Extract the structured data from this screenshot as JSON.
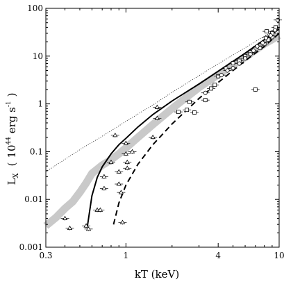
{
  "chart_data": {
    "type": "scatter",
    "title": "",
    "xlabel": "kT (keV)",
    "ylabel_main": "L",
    "ylabel_sub": "X",
    "ylabel_units_base": "10",
    "ylabel_units_exp": "44",
    "ylabel_units_tail": " erg s",
    "ylabel_units_tail_exp": "-1",
    "x_scale": "log",
    "y_scale": "log",
    "xlim": [
      0.3,
      10
    ],
    "ylim": [
      0.001,
      100
    ],
    "x_ticks": [
      {
        "value": 0.3,
        "label": "0.3"
      },
      {
        "value": 1,
        "label": "1"
      },
      {
        "value": 4,
        "label": "4"
      },
      {
        "value": 10,
        "label": "10"
      }
    ],
    "y_ticks": [
      {
        "value": 0.001,
        "label": "0.001"
      },
      {
        "value": 0.01,
        "label": "0.01"
      },
      {
        "value": 0.1,
        "label": "0.1"
      },
      {
        "value": 1,
        "label": "1"
      },
      {
        "value": 10,
        "label": "10"
      },
      {
        "value": 100,
        "label": "100"
      }
    ],
    "series": [
      {
        "style": "dotted-line",
        "points": [
          [
            0.3,
            0.038
          ],
          [
            0.5,
            0.11
          ],
          [
            0.7,
            0.21
          ],
          [
            1.0,
            0.43
          ],
          [
            1.5,
            0.95
          ],
          [
            2.0,
            1.75
          ],
          [
            3.0,
            3.9
          ],
          [
            4.0,
            6.9
          ],
          [
            6.0,
            15
          ],
          [
            8.0,
            26
          ],
          [
            10,
            40
          ]
        ]
      },
      {
        "style": "solid-curve",
        "points": [
          [
            0.56,
            0.0027
          ],
          [
            0.6,
            0.012
          ],
          [
            0.65,
            0.029
          ],
          [
            0.7,
            0.048
          ],
          [
            0.8,
            0.09
          ],
          [
            0.9,
            0.14
          ],
          [
            1.0,
            0.19
          ],
          [
            1.2,
            0.33
          ],
          [
            1.5,
            0.6
          ],
          [
            2.0,
            1.15
          ],
          [
            3.0,
            2.6
          ],
          [
            4.0,
            4.8
          ],
          [
            6.0,
            11.5
          ],
          [
            8.0,
            22
          ],
          [
            10,
            37
          ]
        ]
      },
      {
        "style": "dashed-curve",
        "points": [
          [
            0.83,
            0.003
          ],
          [
            0.9,
            0.0085
          ],
          [
            1.0,
            0.02
          ],
          [
            1.2,
            0.055
          ],
          [
            1.5,
            0.14
          ],
          [
            2.0,
            0.38
          ],
          [
            3.0,
            1.3
          ],
          [
            4.0,
            2.8
          ],
          [
            6.0,
            8.0
          ],
          [
            8.0,
            16
          ],
          [
            10,
            30
          ]
        ]
      },
      {
        "style": "gray-band",
        "points": [
          [
            0.3,
            0.0028
          ],
          [
            0.35,
            0.0042
          ],
          [
            0.4,
            0.0065
          ],
          [
            0.45,
            0.009
          ],
          [
            0.5,
            0.014
          ],
          [
            0.55,
            0.022
          ],
          [
            0.6,
            0.035
          ],
          [
            0.7,
            0.052
          ],
          [
            0.8,
            0.068
          ],
          [
            0.9,
            0.09
          ],
          [
            1.0,
            0.12
          ],
          [
            1.2,
            0.2
          ],
          [
            1.5,
            0.37
          ],
          [
            2.0,
            0.8
          ],
          [
            3.0,
            2.2
          ],
          [
            4.0,
            4.1
          ],
          [
            6.0,
            9.5
          ],
          [
            8.0,
            18
          ],
          [
            10,
            27
          ]
        ]
      },
      {
        "marker": "triangle",
        "points": [
          [
            0.4,
            0.004
          ],
          [
            0.43,
            0.0025
          ],
          [
            0.55,
            0.0028
          ],
          [
            0.57,
            0.0024
          ],
          [
            0.65,
            0.006
          ],
          [
            0.68,
            0.006
          ],
          [
            0.72,
            0.017
          ],
          [
            0.72,
            0.03
          ],
          [
            0.8,
            0.06
          ],
          [
            0.85,
            0.22
          ],
          [
            0.9,
            0.021
          ],
          [
            0.9,
            0.038
          ],
          [
            0.93,
            0.014
          ],
          [
            1.0,
            0.15
          ],
          [
            1.0,
            0.09
          ],
          [
            1.02,
            0.06
          ],
          [
            1.02,
            0.045
          ],
          [
            1.1,
            0.1
          ],
          [
            0.95,
            0.0033
          ],
          [
            1.5,
            0.2
          ],
          [
            1.6,
            0.5
          ],
          [
            1.6,
            0.85
          ]
        ]
      },
      {
        "marker": "square",
        "points": [
          [
            2.2,
            0.68
          ],
          [
            2.5,
            0.75
          ],
          [
            2.6,
            1.1
          ],
          [
            2.8,
            0.66
          ],
          [
            3.3,
            1.2
          ],
          [
            3.6,
            2.1
          ],
          [
            3.8,
            2.5
          ],
          [
            4.0,
            3.8
          ],
          [
            4.5,
            5.5
          ],
          [
            5.0,
            7.1
          ],
          [
            5.5,
            8.0
          ],
          [
            6.0,
            10
          ],
          [
            6.5,
            12
          ],
          [
            7.0,
            2.0
          ],
          [
            7.5,
            15
          ],
          [
            8.0,
            18
          ],
          [
            8.5,
            22
          ],
          [
            9.0,
            30
          ],
          [
            9.5,
            40
          ],
          [
            9.0,
            25
          ],
          [
            8.3,
            33
          ]
        ]
      },
      {
        "marker": "circle",
        "points": [
          [
            3.3,
            1.7
          ],
          [
            4.2,
            4.0
          ],
          [
            4.6,
            5.0
          ],
          [
            5.0,
            5.6
          ],
          [
            5.5,
            7.0
          ],
          [
            6.0,
            9.0
          ],
          [
            6.5,
            11
          ],
          [
            6.8,
            13
          ],
          [
            7.2,
            16
          ],
          [
            7.8,
            19
          ],
          [
            8.2,
            24
          ],
          [
            8.8,
            27
          ],
          [
            9.4,
            35
          ],
          [
            9.8,
            57
          ]
        ]
      }
    ]
  }
}
